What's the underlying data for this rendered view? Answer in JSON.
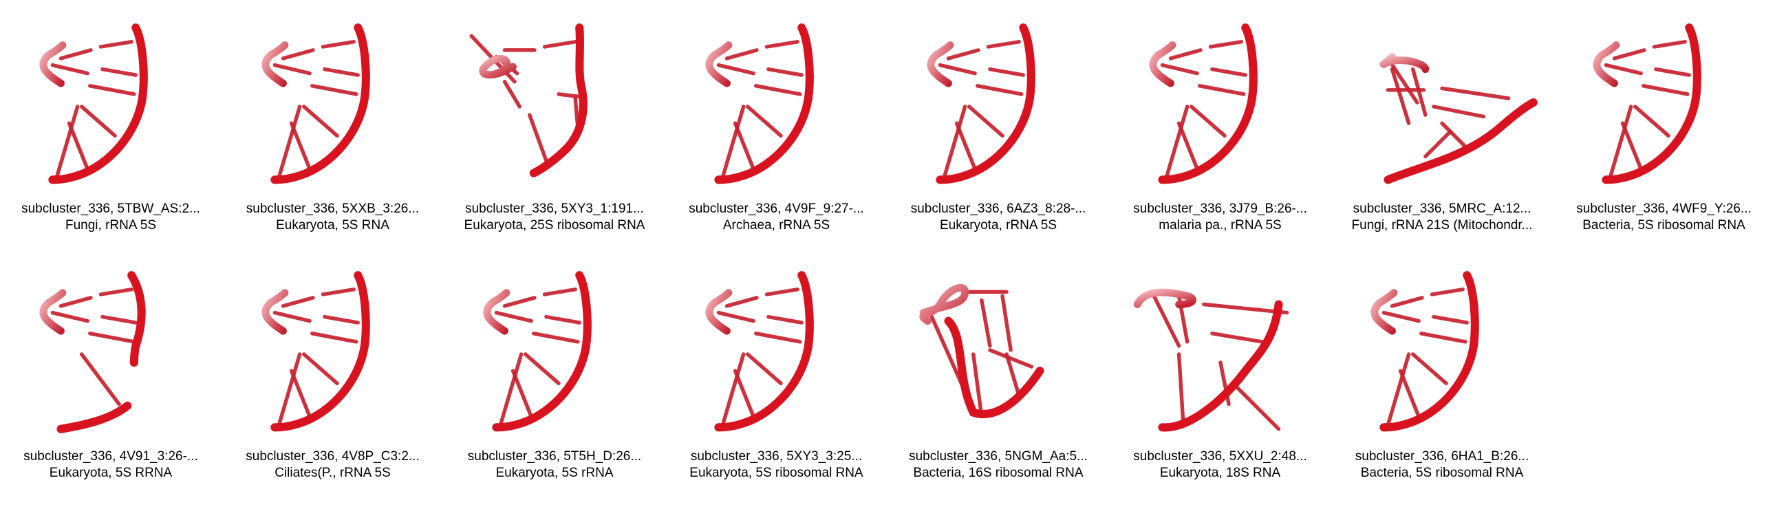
{
  "tiles": [
    {
      "title": "subcluster_336, 5TBW_AS:2...",
      "subtitle": "Fungi, rRNA 5S",
      "variant": "standard"
    },
    {
      "title": "subcluster_336, 5XXB_3:26...",
      "subtitle": "Eukaryota, 5S RNA",
      "variant": "standard"
    },
    {
      "title": "subcluster_336, 5XY3_1:191...",
      "subtitle": "Eukaryota, 25S ribosomal RNA",
      "variant": "twisted"
    },
    {
      "title": "subcluster_336, 4V9F_9:27-...",
      "subtitle": "Archaea, rRNA 5S",
      "variant": "standard"
    },
    {
      "title": "subcluster_336, 6AZ3_8:28-...",
      "subtitle": "Eukaryota, rRNA 5S",
      "variant": "standard"
    },
    {
      "title": "subcluster_336, 3J79_B:26-...",
      "subtitle": "malaria pa., rRNA 5S",
      "variant": "standard"
    },
    {
      "title": "subcluster_336, 5MRC_A:12...",
      "subtitle": "Fungi, rRNA 21S (Mitochondr...",
      "variant": "flat"
    },
    {
      "title": "subcluster_336, 4WF9_Y:26...",
      "subtitle": "Bacteria, 5S ribosomal RNA",
      "variant": "standard"
    },
    {
      "title": "subcluster_336, 4V91_3:26-...",
      "subtitle": "Eukaryota, 5S RRNA",
      "variant": "open"
    },
    {
      "title": "subcluster_336, 4V8P_C3:2...",
      "subtitle": "Ciliates(P., rRNA 5S",
      "variant": "standard"
    },
    {
      "title": "subcluster_336, 5T5H_D:26...",
      "subtitle": "Eukaryota, 5S rRNA",
      "variant": "standard"
    },
    {
      "title": "subcluster_336, 5XY3_3:25...",
      "subtitle": "Eukaryota, 5S ribosomal RNA",
      "variant": "standard"
    },
    {
      "title": "subcluster_336, 5NGM_Aa:5...",
      "subtitle": "Bacteria, 16S ribosomal RNA",
      "variant": "loop"
    },
    {
      "title": "subcluster_336, 5XXU_2:48...",
      "subtitle": "Eukaryota, 18S RNA",
      "variant": "zigzag"
    },
    {
      "title": "subcluster_336, 6HA1_B:26...",
      "subtitle": "Bacteria, 5S ribosomal RNA",
      "variant": "standard"
    }
  ]
}
